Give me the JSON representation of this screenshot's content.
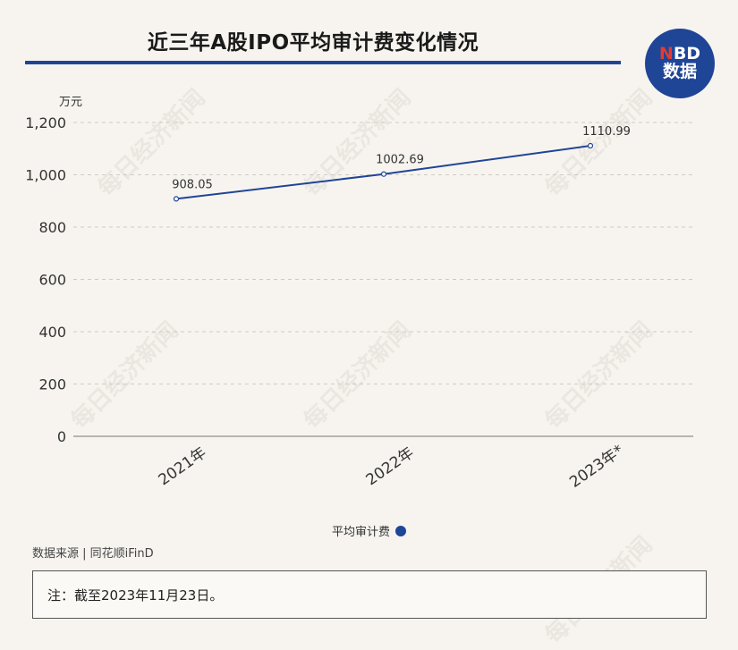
{
  "title": "近三年A股IPO平均审计费变化情况",
  "logo": {
    "line1_n": "N",
    "line1_rest": "BD",
    "line2": "数据"
  },
  "unit": "万元",
  "legend": {
    "label": "平均审计费",
    "color": "#1f4597"
  },
  "source": "数据来源 | 同花顺iFinD",
  "note": "注：截至2023年11月23日。",
  "watermark": "每日经济新闻",
  "chart_data": {
    "type": "line",
    "categories": [
      "2021年",
      "2022年",
      "2023年*"
    ],
    "series": [
      {
        "name": "平均审计费",
        "values": [
          908.05,
          1002.69,
          1110.99
        ],
        "labels": [
          "908.05",
          "1002.69",
          "1110.99"
        ],
        "color": "#1f4597"
      }
    ],
    "ylabel": "万元",
    "ylim": [
      0,
      1200
    ],
    "yticks": [
      0,
      200,
      400,
      600,
      800,
      1000,
      1200
    ],
    "ytick_labels": [
      "0",
      "200",
      "400",
      "600",
      "800",
      "1,000",
      "1,200"
    ],
    "grid": true,
    "legend_position": "bottom"
  }
}
